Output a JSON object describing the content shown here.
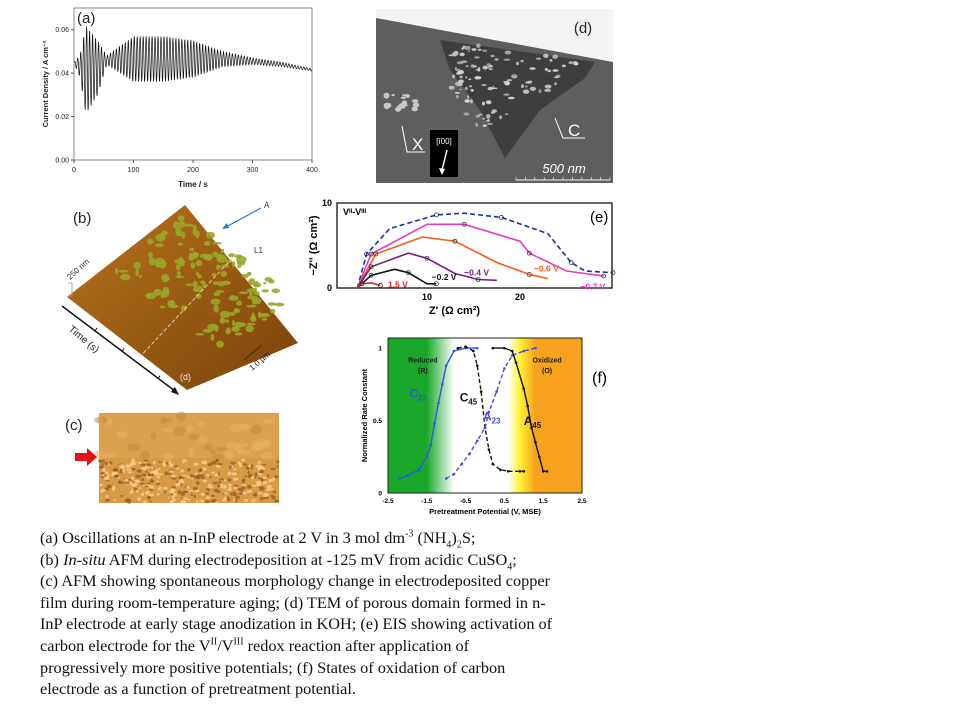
{
  "colors": {
    "green": "#1aa82a",
    "orange": "#f7a21e",
    "afm_green": "#9aa52a",
    "tem_gray": "#5e5e5e"
  },
  "chart_data": [
    {
      "id": "a",
      "type": "line",
      "panel_label": "(a)",
      "xlabel": "Time / s",
      "ylabel": "Current Density / A cm⁻²",
      "xlim": [
        0,
        400
      ],
      "ylim": [
        0,
        0.07
      ],
      "xticks": [
        "0",
        "100",
        "200",
        "300",
        "400"
      ],
      "xtick_values": [
        0,
        100,
        200,
        300,
        400
      ],
      "yticks": [
        "0.00",
        "0.02",
        "0.04",
        "0.06"
      ],
      "ytick_values": [
        0,
        0.02,
        0.04,
        0.06
      ],
      "oscillation_period_s": 5,
      "envelope": {
        "time": [
          0,
          10,
          20,
          40,
          55,
          100,
          150,
          200,
          250,
          300,
          350,
          400
        ],
        "upper": [
          0.045,
          0.048,
          0.062,
          0.055,
          0.048,
          0.057,
          0.057,
          0.055,
          0.05,
          0.047,
          0.045,
          0.042
        ],
        "lower": [
          0.045,
          0.038,
          0.021,
          0.03,
          0.044,
          0.036,
          0.036,
          0.038,
          0.043,
          0.044,
          0.043,
          0.041
        ]
      }
    },
    {
      "id": "e",
      "type": "line",
      "panel_label": "(e)",
      "title": "Vᴵᴵ-Vᴵᴵᴵ",
      "xlabel": "Z' (Ω cm²)",
      "ylabel": "−Z'' (Ω cm²)",
      "xlim": [
        0,
        30
      ],
      "ylim": [
        0,
        10
      ],
      "xticks": [
        "10",
        "20"
      ],
      "xtick_values": [
        10,
        20
      ],
      "yticks": [
        "0",
        "10"
      ],
      "ytick_values": [
        0,
        10
      ],
      "series": [
        {
          "name": "dashed",
          "label": "",
          "color": "#1a2fa0",
          "dash": true,
          "x": [
            2.5,
            3.5,
            6,
            11,
            14,
            18,
            23,
            25.5,
            27,
            30
          ],
          "y": [
            0,
            4,
            7,
            8.6,
            8.8,
            8.3,
            6.4,
            3,
            2,
            1.8
          ]
        },
        {
          "name": "-0.7 V",
          "label": "−0.7 V",
          "color": "#e33cc6",
          "x": [
            2.5,
            4,
            10,
            14,
            20,
            21,
            25,
            29
          ],
          "y": [
            0,
            4,
            7.5,
            7.5,
            5.5,
            4.1,
            2,
            1.4
          ]
        },
        {
          "name": "-0.6 V",
          "label": "−0.6 V",
          "color": "#f0601a",
          "x": [
            2.5,
            4.5,
            9.5,
            13,
            17.5,
            21,
            23
          ],
          "y": [
            0,
            4,
            6,
            5.5,
            3,
            1.6,
            1.1
          ]
        },
        {
          "name": "-0.4 V",
          "label": "−0.4 V",
          "color": "#7a1a8a",
          "x": [
            2.5,
            4,
            8,
            10,
            13,
            15.5,
            17.5
          ],
          "y": [
            0,
            2.5,
            4.1,
            3.5,
            1.7,
            1,
            0.9
          ]
        },
        {
          "name": "-0.2 V",
          "label": "−0.2 V",
          "color": "#111111",
          "x": [
            2.5,
            4,
            6.5,
            8,
            10,
            11
          ],
          "y": [
            0,
            1.5,
            2.2,
            1.8,
            0.5,
            0.5
          ]
        },
        {
          "name": "1.5 V",
          "label": "1.5 V",
          "color": "#e0202a",
          "x": [
            2.5,
            3,
            4,
            5
          ],
          "y": [
            0,
            0.5,
            0.6,
            0.3
          ]
        }
      ]
    },
    {
      "id": "f",
      "type": "line",
      "panel_label": "(f)",
      "xlabel": "Pretreatment Potential (V, MSE)",
      "ylabel": "Normalized Rate Constant",
      "xlim": [
        -2.5,
        2.5
      ],
      "ylim": [
        0,
        1.07
      ],
      "xticks": [
        "-2.5",
        "-1.5",
        "-0.5",
        "0.5",
        "1.5",
        "2.5"
      ],
      "xtick_values": [
        -2.5,
        -1.5,
        -0.5,
        0.5,
        1.5,
        2.5
      ],
      "yticks": [
        "0",
        "0.5",
        "1"
      ],
      "ytick_values": [
        0,
        0.5,
        1
      ],
      "region_labels": {
        "reduced": "Reduced",
        "reduced_sym": "(R)",
        "oxidized": "Oxidized",
        "oxidized_sym": "(O)"
      },
      "series": [
        {
          "name": "C23",
          "label": "C",
          "sub": "23",
          "color": "#2b58e0",
          "dash": false,
          "x": [
            -2.2,
            -2,
            -1.7,
            -1.5,
            -1.4,
            -1.3,
            -1.2,
            -1.1,
            -1,
            -0.8,
            -0.5,
            -0.2
          ],
          "y": [
            0.1,
            0.12,
            0.16,
            0.25,
            0.33,
            0.48,
            0.62,
            0.75,
            0.88,
            0.98,
            1,
            1
          ]
        },
        {
          "name": "C45",
          "label": "C",
          "sub": "45",
          "color": "#111111",
          "dash": true,
          "x": [
            -0.7,
            -0.5,
            -0.3,
            -0.2,
            -0.1,
            0,
            0.1,
            0.2,
            0.4,
            0.6,
            0.9,
            1
          ],
          "y": [
            1,
            1.01,
            0.98,
            0.88,
            0.7,
            0.45,
            0.3,
            0.2,
            0.16,
            0.15,
            0.15,
            0.15
          ]
        },
        {
          "name": "A23",
          "label": "A",
          "sub": "23",
          "color": "#4a4ae0",
          "dash": true,
          "x": [
            -1,
            -0.8,
            -0.6,
            -0.4,
            -0.2,
            0,
            0.1,
            0.3,
            0.5,
            0.7,
            1,
            1.3
          ],
          "y": [
            0.1,
            0.13,
            0.2,
            0.27,
            0.36,
            0.45,
            0.56,
            0.7,
            0.86,
            0.95,
            0.98,
            1
          ]
        },
        {
          "name": "A45",
          "label": "A",
          "sub": "45",
          "color": "#111111",
          "dash": false,
          "x": [
            0.2,
            0.5,
            0.7,
            0.8,
            1,
            1.1,
            1.2,
            1.3,
            1.4,
            1.5,
            1.6
          ],
          "y": [
            1,
            1,
            0.98,
            0.9,
            0.72,
            0.6,
            0.45,
            0.35,
            0.25,
            0.15,
            0.15
          ]
        }
      ]
    }
  ],
  "panel_b": {
    "label": "(b)",
    "arrow_label": "A",
    "line_label": "L1",
    "height_scale": "250 nm",
    "length_scale": "1.0 µm",
    "time_axis": "Time (s)",
    "inset_ref": "(d)"
  },
  "panel_c": {
    "label": "(c)"
  },
  "panel_d": {
    "label": "(d)",
    "region_x": "X",
    "region_c": "C",
    "direction": "[ī00]",
    "scale_bar": "500 nm"
  },
  "caption": {
    "lines": [
      [
        {
          "t": "(a) Oscillations at an n-InP electrode at 2 V in 3 mol dm"
        },
        {
          "t": "-3",
          "s": "sup"
        },
        {
          "t": " (NH"
        },
        {
          "t": "4",
          "s": "sub"
        },
        {
          "t": ")"
        },
        {
          "t": "2",
          "s": "sub"
        },
        {
          "t": "S;"
        }
      ],
      [
        {
          "t": "(b) "
        },
        {
          "t": "In-situ",
          "s": "i"
        },
        {
          "t": " AFM during electrodeposition at -125 mV from acidic CuSO"
        },
        {
          "t": "4",
          "s": "sub"
        },
        {
          "t": ";"
        }
      ],
      [
        {
          "t": "(c) AFM showing spontaneous morphology change in electrodeposited copper"
        }
      ],
      [
        {
          "t": "film  during room-temperature aging;  (d) TEM of porous domain formed in n-"
        }
      ],
      [
        {
          "t": "InP electrode at early  stage anodization in KOH;  (e) EIS showing activation of"
        }
      ],
      [
        {
          "t": "carbon electrode  for the V"
        },
        {
          "t": "II",
          "s": "sup"
        },
        {
          "t": "/V"
        },
        {
          "t": "III",
          "s": "sup"
        },
        {
          "t": " redox reaction after application of"
        }
      ],
      [
        {
          "t": "progressively more positive potentials;  (f) States of oxidation of carbon"
        }
      ],
      [
        {
          "t": "electrode as a function of pretreatment  potential."
        }
      ]
    ]
  }
}
